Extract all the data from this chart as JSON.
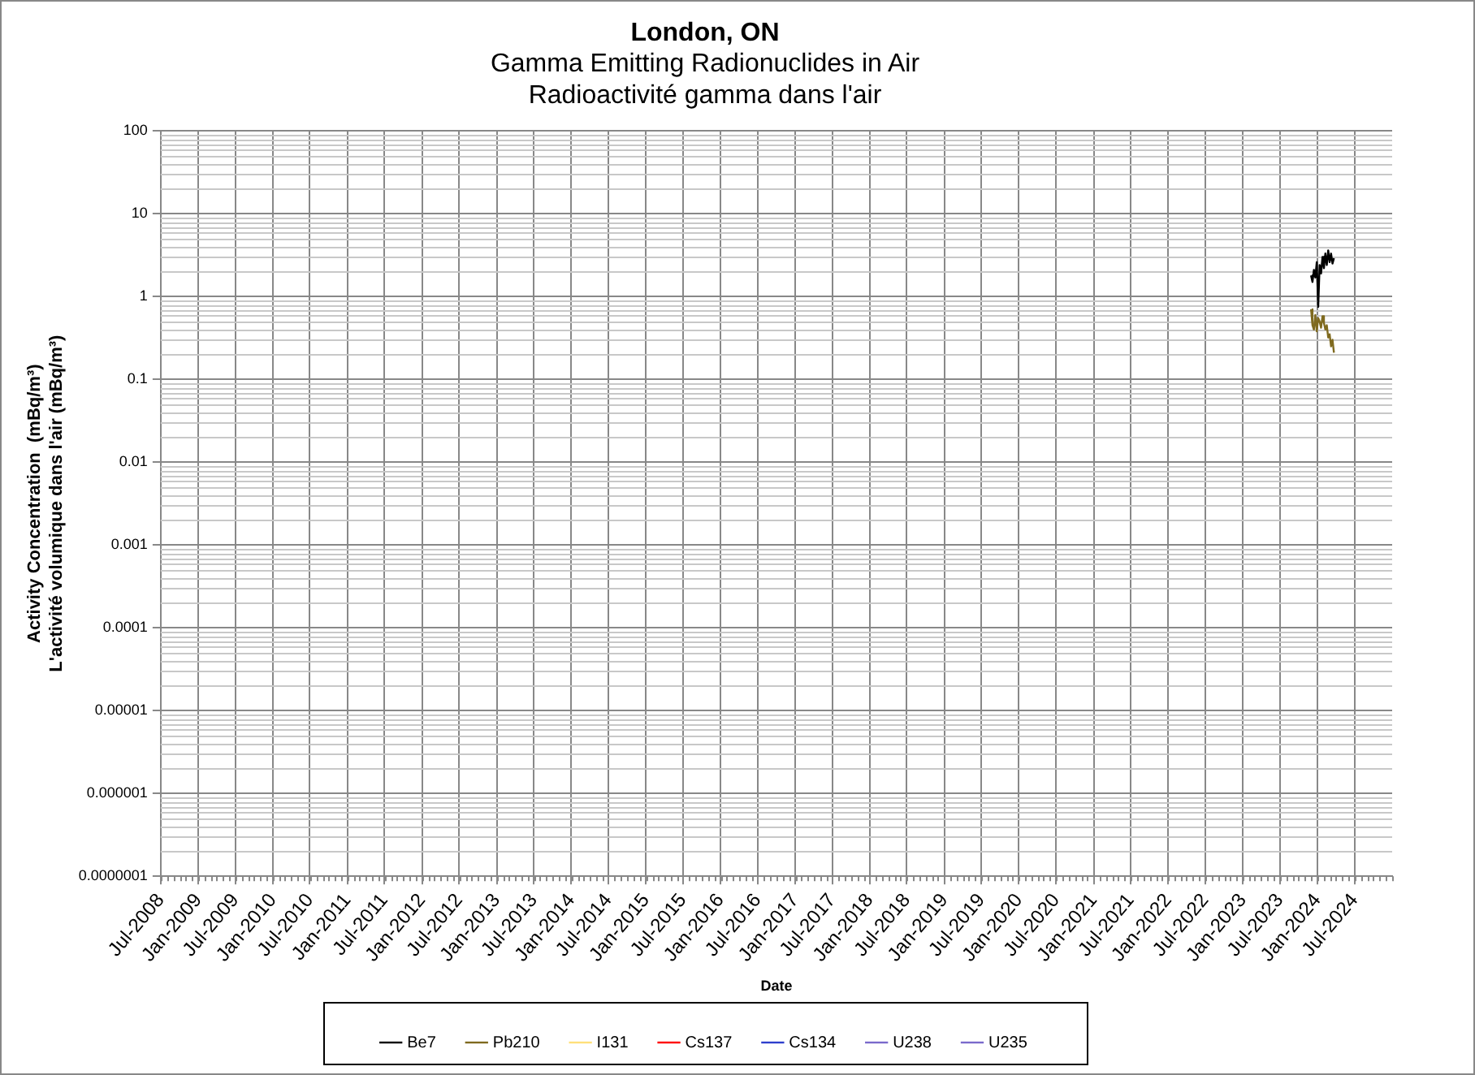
{
  "chart_data": {
    "type": "line",
    "title": "London, ON",
    "subtitle": "Gamma Emitting Radionuclides in Air\nRadioactivité gamma dans l'air",
    "xlabel": "Date",
    "ylabel": "Activity Concentration  (mBq/m³)\nL'activité volumique dans l'air (mBq/m³)",
    "x": [
      "2023-12-01",
      "2023-12-08",
      "2023-12-15",
      "2023-12-22",
      "2023-12-29",
      "2024-01-05",
      "2024-01-12",
      "2024-01-19",
      "2024-01-26",
      "2024-02-02",
      "2024-02-09",
      "2024-02-16",
      "2024-02-23",
      "2024-03-01",
      "2024-03-08",
      "2024-03-15",
      "2024-03-22"
    ],
    "series": [
      {
        "name": "Be7",
        "color": "#000000",
        "values": [
          1.8,
          1.5,
          2.1,
          1.7,
          2.6,
          0.75,
          2.4,
          1.9,
          3.0,
          2.2,
          3.3,
          2.4,
          3.6,
          2.6,
          3.3,
          2.5,
          2.9
        ]
      },
      {
        "name": "Pb210",
        "color": "#7f6a1f",
        "values": [
          0.7,
          0.45,
          0.4,
          0.6,
          0.38,
          0.55,
          0.5,
          0.42,
          0.58,
          0.48,
          0.4,
          0.45,
          0.32,
          0.35,
          0.25,
          0.3,
          0.21
        ]
      },
      {
        "name": "I131",
        "color": "#ffe07a",
        "values": [
          null,
          null,
          null,
          null,
          null,
          null,
          null,
          null,
          null,
          null,
          null,
          null,
          null,
          null,
          null,
          null,
          null
        ]
      },
      {
        "name": "Cs137",
        "color": "#ff0000",
        "values": [
          null,
          null,
          null,
          null,
          null,
          null,
          null,
          null,
          null,
          null,
          null,
          null,
          null,
          null,
          null,
          null,
          null
        ]
      },
      {
        "name": "Cs134",
        "color": "#2e3fcc",
        "values": [
          null,
          null,
          null,
          null,
          null,
          null,
          null,
          null,
          null,
          null,
          null,
          null,
          null,
          null,
          null,
          null,
          null
        ]
      },
      {
        "name": "U238",
        "color": "#7a6acb",
        "values": [
          null,
          null,
          null,
          null,
          null,
          null,
          null,
          null,
          null,
          null,
          null,
          null,
          null,
          null,
          null,
          null,
          null
        ]
      },
      {
        "name": "U235",
        "color": "#7a6acb",
        "values": [
          null,
          null,
          null,
          null,
          null,
          null,
          null,
          null,
          null,
          null,
          null,
          null,
          null,
          null,
          null,
          null,
          null
        ]
      }
    ],
    "log": "y",
    "ylim": [
      1e-07,
      100
    ],
    "yticks": [
      {
        "value": 1e-07,
        "label": "0.0000001"
      },
      {
        "value": 1e-06,
        "label": "0.000001"
      },
      {
        "value": 1e-05,
        "label": "0.00001"
      },
      0.0001,
      0.001,
      0.01,
      0.1,
      1,
      10,
      100
    ],
    "xlim": [
      "2008-07-01",
      "2025-01-01"
    ],
    "xticks": [
      {
        "value": "2008-07-01",
        "label": "Jul-2008"
      },
      {
        "value": "2009-01-01",
        "label": "Jan-2009"
      },
      {
        "value": "2009-07-01",
        "label": "Jul-2009"
      },
      {
        "value": "2010-01-01",
        "label": "Jan-2010"
      },
      {
        "value": "2010-07-01",
        "label": "Jul-2010"
      },
      {
        "value": "2011-01-01",
        "label": "Jan-2011"
      },
      {
        "value": "2011-07-01",
        "label": "Jul-2011"
      },
      {
        "value": "2012-01-01",
        "label": "Jan-2012"
      },
      {
        "value": "2012-07-01",
        "label": "Jul-2012"
      },
      {
        "value": "2013-01-01",
        "label": "Jan-2013"
      },
      {
        "value": "2013-07-01",
        "label": "Jul-2013"
      },
      {
        "value": "2014-01-01",
        "label": "Jan-2014"
      },
      {
        "value": "2014-07-01",
        "label": "Jul-2014"
      },
      {
        "value": "2015-01-01",
        "label": "Jan-2015"
      },
      {
        "value": "2015-07-01",
        "label": "Jul-2015"
      },
      {
        "value": "2016-01-01",
        "label": "Jan-2016"
      },
      {
        "value": "2016-07-01",
        "label": "Jul-2016"
      },
      {
        "value": "2017-01-01",
        "label": "Jan-2017"
      },
      {
        "value": "2017-07-01",
        "label": "Jul-2017"
      },
      {
        "value": "2018-01-01",
        "label": "Jan-2018"
      },
      {
        "value": "2018-07-01",
        "label": "Jul-2018"
      },
      {
        "value": "2019-01-01",
        "label": "Jan-2019"
      },
      {
        "value": "2019-07-01",
        "label": "Jul-2019"
      },
      {
        "value": "2020-01-01",
        "label": "Jan-2020"
      },
      {
        "value": "2020-07-01",
        "label": "Jul-2020"
      },
      {
        "value": "2021-01-01",
        "label": "Jan-2021"
      },
      {
        "value": "2021-07-01",
        "label": "Jul-2021"
      },
      {
        "value": "2022-01-01",
        "label": "Jan-2022"
      },
      {
        "value": "2022-07-01",
        "label": "Jul-2022"
      },
      {
        "value": "2023-01-01",
        "label": "Jan-2023"
      },
      {
        "value": "2023-07-01",
        "label": "Jul-2023"
      },
      {
        "value": "2024-01-01",
        "label": "Jan-2024"
      },
      {
        "value": "2024-07-01",
        "label": "Jul-2024"
      }
    ],
    "grid": true,
    "legend": "bottom",
    "marker": "none",
    "line_style": "solid"
  }
}
